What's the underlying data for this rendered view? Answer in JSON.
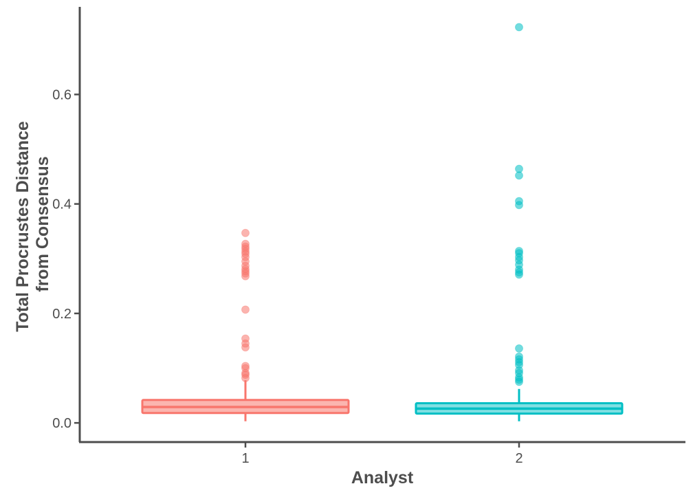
{
  "chart_data": {
    "type": "boxplot",
    "xlabel": "Analyst",
    "ylabel_lines": [
      "Total Procrustes Distance",
      "from Consensus"
    ],
    "ylim": [
      -0.035,
      0.76
    ],
    "yticks": [
      0.0,
      0.2,
      0.4,
      0.6
    ],
    "ytick_labels": [
      "0.0",
      "0.2",
      "0.4",
      "0.6"
    ],
    "grid": false,
    "legend": "none",
    "categories": [
      "1",
      "2"
    ],
    "boxes": [
      {
        "category": "1",
        "color": "#F8766D",
        "fill": "#FBB5AF",
        "q1": 0.018,
        "median": 0.029,
        "q3": 0.042,
        "whisker_low": 0.003,
        "whisker_high": 0.078,
        "outliers": [
          0.082,
          0.088,
          0.091,
          0.1,
          0.104,
          0.138,
          0.145,
          0.154,
          0.207,
          0.268,
          0.273,
          0.277,
          0.281,
          0.287,
          0.295,
          0.303,
          0.309,
          0.313,
          0.318,
          0.322,
          0.327,
          0.347
        ]
      },
      {
        "category": "2",
        "color": "#00BFC4",
        "fill": "#80DFE2",
        "q1": 0.017,
        "median": 0.026,
        "q3": 0.036,
        "whisker_low": 0.003,
        "whisker_high": 0.062,
        "outliers": [
          0.075,
          0.079,
          0.083,
          0.091,
          0.096,
          0.106,
          0.111,
          0.116,
          0.121,
          0.136,
          0.271,
          0.275,
          0.28,
          0.289,
          0.297,
          0.303,
          0.31,
          0.314,
          0.398,
          0.405,
          0.452,
          0.464,
          0.723
        ]
      }
    ]
  }
}
